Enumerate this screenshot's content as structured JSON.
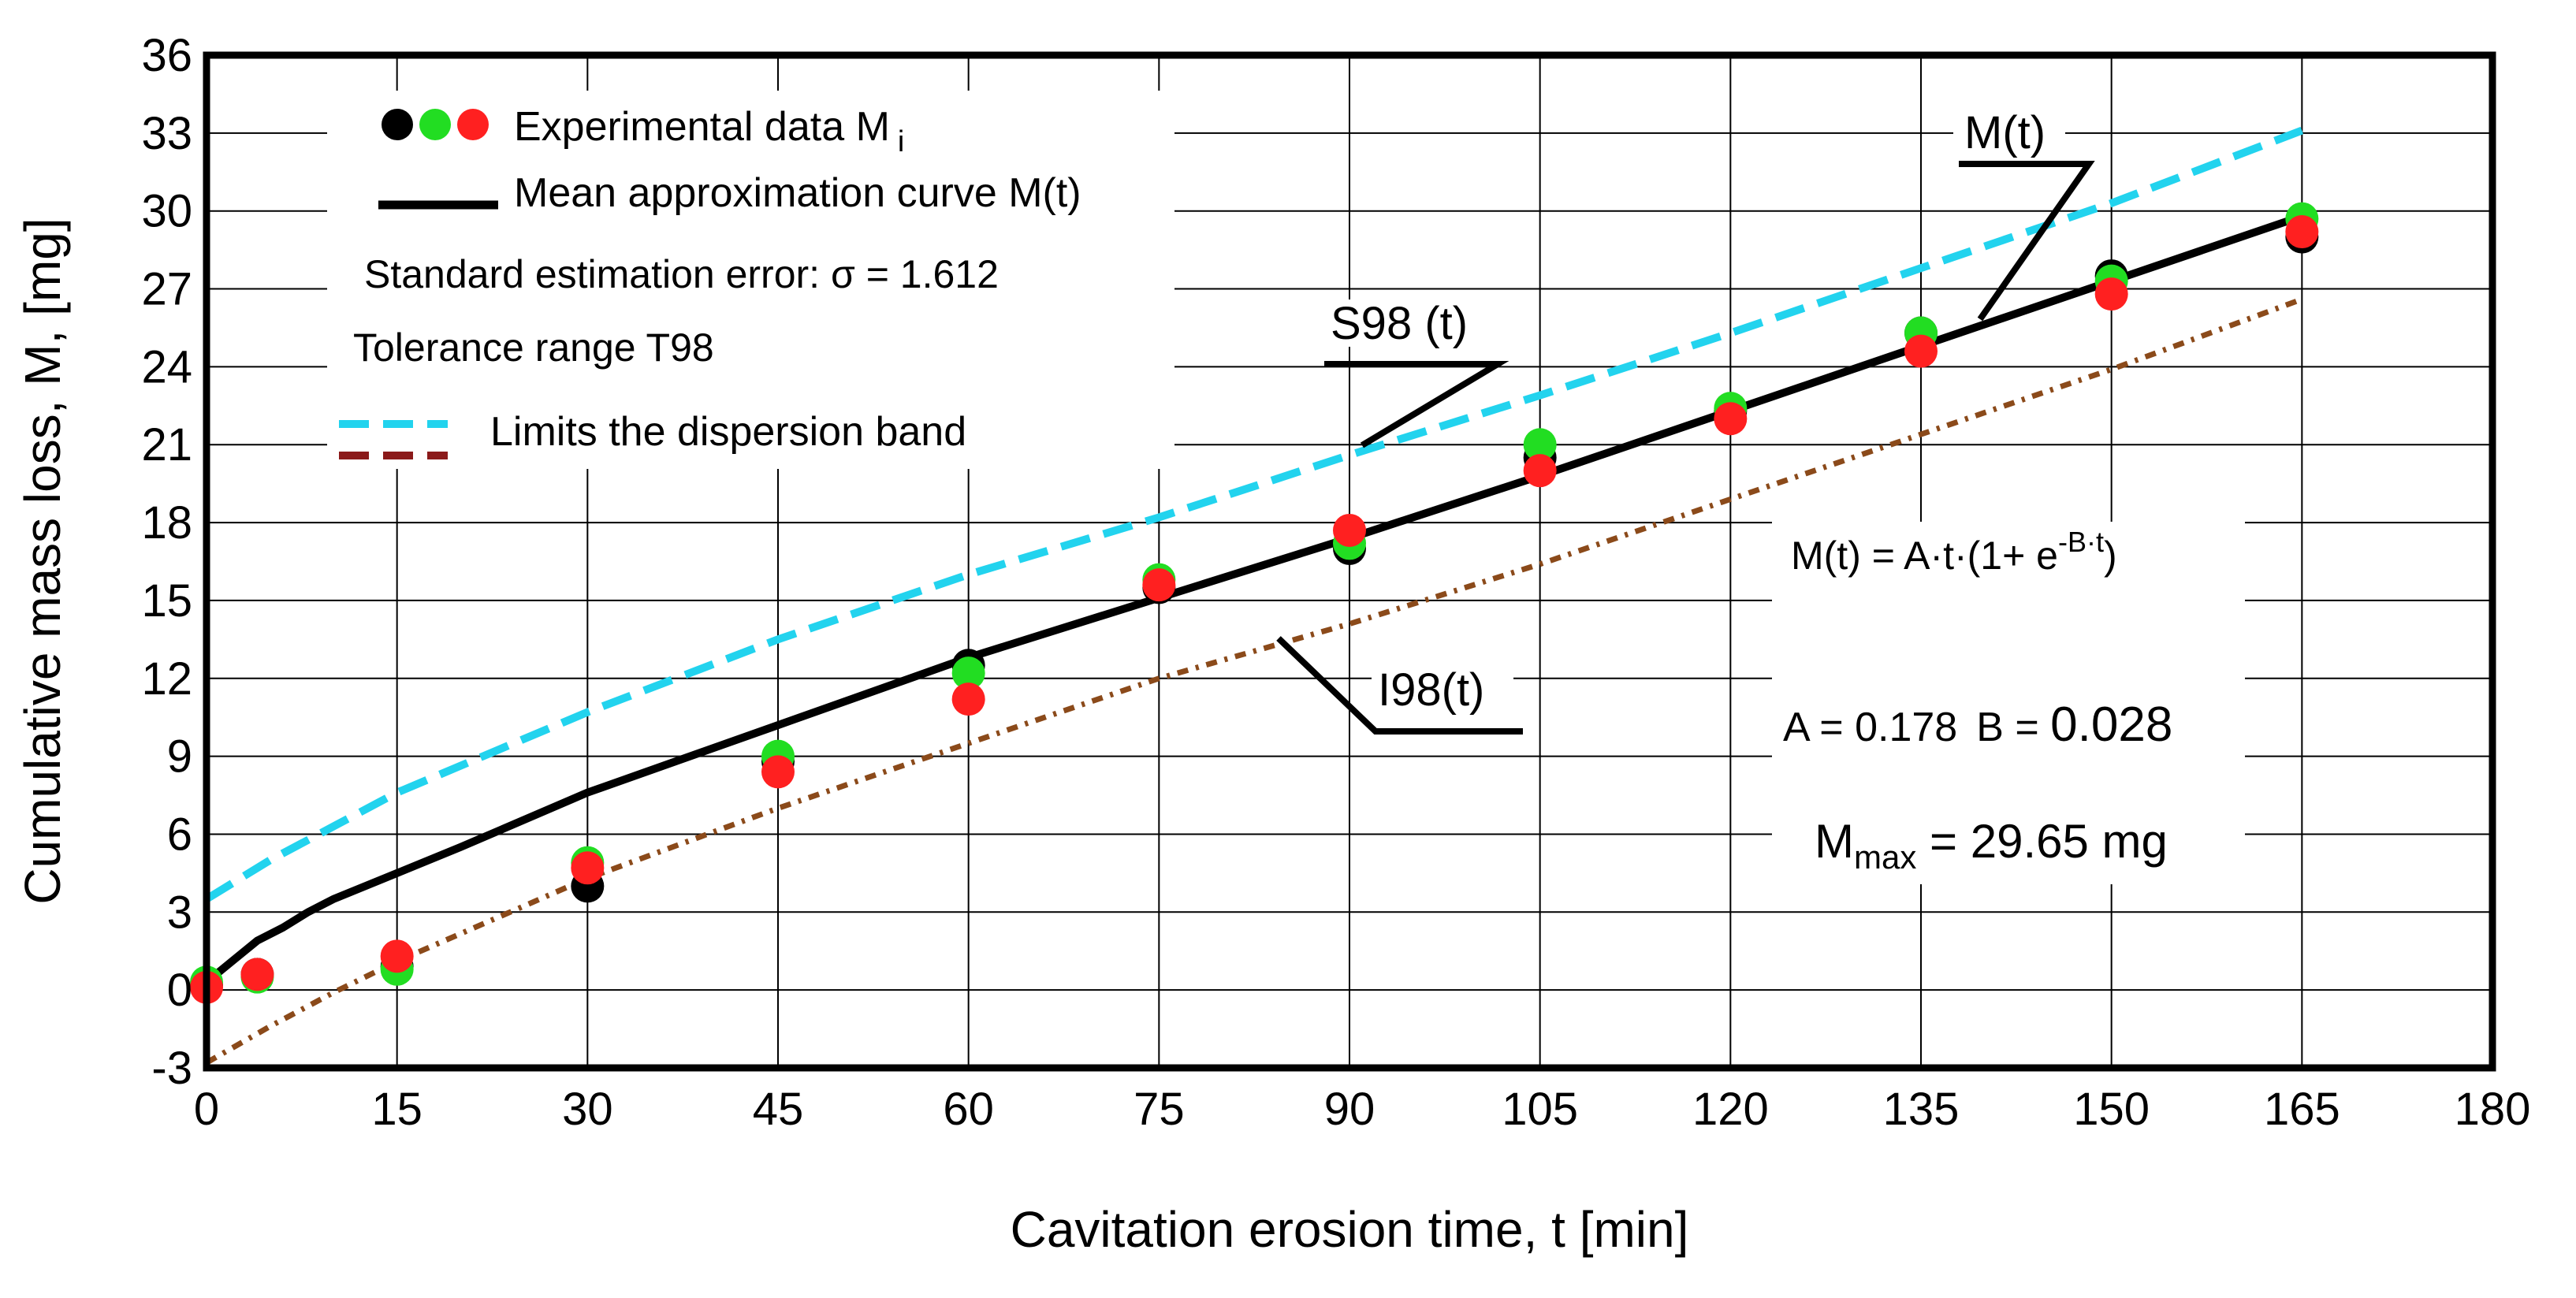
{
  "chart_data": {
    "type": "scatter",
    "title": "",
    "xlabel": "Cavitation erosion time, t [min]",
    "ylabel": "Cumulative mass loss, M, [mg]",
    "xlim": [
      0,
      180
    ],
    "ylim": [
      -3,
      36
    ],
    "xticks": [
      0,
      15,
      30,
      45,
      60,
      75,
      90,
      105,
      120,
      135,
      150,
      165,
      180
    ],
    "yticks": [
      -3,
      0,
      3,
      6,
      9,
      12,
      15,
      18,
      21,
      24,
      27,
      30,
      33,
      36
    ],
    "xtick_labels": [
      "0",
      "15",
      "30",
      "45",
      "60",
      "75",
      "90",
      "105",
      "120",
      "135",
      "150",
      "165",
      "180"
    ],
    "ytick_labels": [
      "-3",
      "0",
      "3",
      "6",
      "9",
      "12",
      "15",
      "18",
      "21",
      "24",
      "27",
      "30",
      "33",
      "36"
    ],
    "grid": true,
    "params": {
      "A": 0.178,
      "B": 0.028,
      "sigma": 1.612
    },
    "series": [
      {
        "name": "Experimental data (black)",
        "kind": "points",
        "color": "#000000",
        "x": [
          0,
          4,
          15,
          30,
          45,
          60,
          75,
          90,
          105,
          120,
          135,
          150,
          165
        ],
        "y": [
          0.2,
          0.6,
          0.9,
          4.0,
          8.8,
          12.5,
          15.5,
          17.0,
          20.5,
          22.3,
          25.3,
          27.5,
          29.0
        ]
      },
      {
        "name": "Experimental data (green)",
        "kind": "points",
        "color": "#22dd22",
        "x": [
          0,
          4,
          15,
          30,
          45,
          60,
          75,
          90,
          105,
          120,
          135,
          150,
          165
        ],
        "y": [
          0.3,
          0.5,
          0.8,
          4.9,
          9.0,
          12.2,
          15.8,
          17.2,
          21.0,
          22.4,
          25.3,
          27.3,
          29.7
        ]
      },
      {
        "name": "Experimental data (red)",
        "kind": "points",
        "color": "#ff2020",
        "x": [
          0,
          4,
          15,
          30,
          45,
          60,
          75,
          90,
          105,
          120,
          135,
          150,
          165
        ],
        "y": [
          0.1,
          0.6,
          1.3,
          4.7,
          8.4,
          11.2,
          15.6,
          17.7,
          20.0,
          22.0,
          24.6,
          26.8,
          29.2
        ]
      },
      {
        "name": "M(t)",
        "kind": "line",
        "color": "#000000",
        "x": [
          0,
          2,
          4,
          6,
          8,
          10,
          15,
          20,
          30,
          45,
          60,
          75,
          90,
          105,
          120,
          135,
          150,
          165
        ],
        "y": [
          0.3,
          1.1,
          1.9,
          2.4,
          3.0,
          3.5,
          4.5,
          5.5,
          7.6,
          10.2,
          12.8,
          15.1,
          17.4,
          19.8,
          22.3,
          24.8,
          27.3,
          29.8
        ]
      },
      {
        "name": "S98(t)",
        "kind": "dashed",
        "color": "#22d3ee",
        "x": [
          0,
          5,
          10,
          15,
          30,
          45,
          60,
          75,
          90,
          105,
          120,
          135,
          150,
          165
        ],
        "y": [
          3.5,
          5.0,
          6.3,
          7.6,
          10.7,
          13.5,
          16.0,
          18.2,
          20.6,
          22.9,
          25.3,
          27.8,
          30.3,
          33.1
        ]
      },
      {
        "name": "I98(t)",
        "kind": "dotted",
        "color": "#8b4a1a",
        "x": [
          0,
          5,
          10,
          15,
          30,
          45,
          60,
          75,
          90,
          105,
          120,
          135,
          150,
          165
        ],
        "y": [
          -2.8,
          -1.4,
          -0.1,
          1.1,
          4.3,
          7.0,
          9.5,
          12.0,
          14.1,
          16.4,
          18.9,
          21.4,
          23.9,
          26.6
        ]
      }
    ],
    "legend": {
      "position": "top-left",
      "experimental": "Experimental data M",
      "experimental_sub": "i",
      "mean_curve": "Mean approximation curve M(t)",
      "std_error": "Standard estimation error: σ = 1.612",
      "tolerance": "Tolerance range T98",
      "dispersion": "Limits the dispersion band"
    },
    "annotations": {
      "mt_label": "M(t)",
      "s98_label": "S98 (t)",
      "i98_label": "I98(t)",
      "formula_main": "M(t) = A·t·(1+ e",
      "formula_exp": "-B·t",
      "formula_close": ")",
      "a_param": "A = 0.178",
      "b_label": "B = ",
      "b_value": "0.028",
      "mmax_m": "M",
      "mmax_sub": "max",
      "mmax_value": " = 29.65 mg"
    }
  }
}
